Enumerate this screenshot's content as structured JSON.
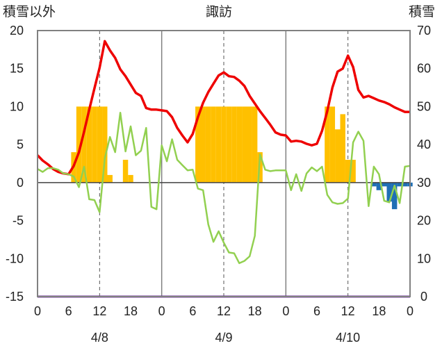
{
  "headings": {
    "left_axis_title": "積雪以外",
    "station": "諏訪",
    "right_axis_title": "積雪"
  },
  "colors": {
    "temperature": "#ee0000",
    "precipitation": "#ffc000",
    "wind": "#92d050",
    "snow_depth": "#1f6fb5",
    "snow_line": "#7030a0",
    "frame": "#808080",
    "grid": "#555555"
  },
  "chart_data": {
    "type": "bar+line",
    "title": "諏訪",
    "left_axis": {
      "label": "積雪以外",
      "ylim": [
        -15,
        20
      ],
      "ticks": [
        -15,
        -10,
        -5,
        0,
        5,
        10,
        15,
        20
      ]
    },
    "right_axis": {
      "label": "積雪",
      "ylim": [
        0,
        70
      ],
      "ticks": [
        0,
        10,
        20,
        30,
        40,
        50,
        60,
        70
      ]
    },
    "x": {
      "unit": "hour",
      "range": [
        0,
        72
      ],
      "tick_labels": [
        "0",
        "6",
        "12",
        "18",
        "0",
        "6",
        "12",
        "18",
        "0",
        "6",
        "12",
        "18",
        "0"
      ],
      "tick_hours": [
        0,
        6,
        12,
        18,
        24,
        30,
        36,
        42,
        48,
        54,
        60,
        66,
        72
      ],
      "day_labels": [
        "4/8",
        "4/9",
        "4/10"
      ]
    },
    "grid": {
      "solid_vertical_at_hours": [
        24,
        48
      ],
      "dashed_vertical_at_hours": [
        12,
        36,
        60
      ],
      "zero_line": true
    },
    "series": [
      {
        "kind": "bar",
        "axis": "left",
        "color_key": "precipitation",
        "hours": [
          7,
          8,
          9,
          10,
          11,
          12,
          13,
          14,
          17,
          18,
          31,
          32,
          33,
          34,
          35,
          36,
          37,
          38,
          39,
          40,
          41,
          42,
          43,
          56,
          57,
          58,
          59,
          60,
          61
        ],
        "values": [
          4,
          10,
          10,
          10,
          10,
          10,
          10,
          1,
          3,
          1,
          10,
          10,
          10,
          10,
          10,
          10,
          10,
          10,
          10,
          10,
          10,
          10,
          4,
          10,
          10,
          7,
          9,
          3,
          3
        ]
      },
      {
        "kind": "bar",
        "axis": "left",
        "color_key": "snow_depth",
        "hours": [
          65,
          66,
          67,
          68,
          69,
          70,
          71,
          72
        ],
        "values": [
          -0.5,
          -1,
          -0.5,
          -2.5,
          -3.5,
          -0.5,
          -0.5,
          -0.5
        ]
      },
      {
        "kind": "line",
        "axis": "left",
        "color_key": "temperature",
        "hours": [
          0,
          1,
          2,
          3,
          4,
          5,
          6,
          7,
          8,
          9,
          10,
          11,
          12,
          13,
          14,
          15,
          16,
          17,
          18,
          19,
          20,
          21,
          22,
          23,
          24,
          25,
          26,
          27,
          28,
          29,
          30,
          31,
          32,
          33,
          34,
          35,
          36,
          37,
          38,
          39,
          40,
          41,
          42,
          43,
          44,
          45,
          46,
          47,
          48,
          49,
          50,
          51,
          52,
          53,
          54,
          55,
          56,
          57,
          58,
          59,
          60,
          61,
          62,
          63,
          64,
          65,
          66,
          67,
          68,
          69,
          70,
          71,
          72
        ],
        "values": [
          3.6,
          2.9,
          2.4,
          1.8,
          1.4,
          1.2,
          1.1,
          2.2,
          4.0,
          6.7,
          9.6,
          12.4,
          15.1,
          18.6,
          17.4,
          16.4,
          14.9,
          14.0,
          12.9,
          11.8,
          11.4,
          9.8,
          9.6,
          9.6,
          9.5,
          9.4,
          8.6,
          7.2,
          6.2,
          5.3,
          6.4,
          8.6,
          10.5,
          11.9,
          13.0,
          14.1,
          14.5,
          14.0,
          13.9,
          13.4,
          12.7,
          11.4,
          10.4,
          9.4,
          8.5,
          7.6,
          6.6,
          6.3,
          6.2,
          5.4,
          5.5,
          5.4,
          5.1,
          4.9,
          5.1,
          6.8,
          9.4,
          12.5,
          14.6,
          15.0,
          16.7,
          15.2,
          12.2,
          11.2,
          11.4,
          11.1,
          10.8,
          10.6,
          10.3,
          9.9,
          9.6,
          9.3,
          9.3
        ]
      },
      {
        "kind": "line",
        "axis": "left",
        "color_key": "wind",
        "hours": [
          0,
          1,
          2,
          3,
          4,
          5,
          6,
          7,
          8,
          9,
          10,
          11,
          12,
          13,
          14,
          15,
          16,
          17,
          18,
          19,
          20,
          21,
          22,
          23,
          24,
          25,
          26,
          27,
          28,
          29,
          30,
          31,
          32,
          33,
          34,
          35,
          36,
          37,
          38,
          39,
          40,
          41,
          42,
          43,
          44,
          45,
          46,
          47,
          48,
          49,
          50,
          51,
          52,
          53,
          54,
          55,
          56,
          57,
          58,
          59,
          60,
          61,
          62,
          63,
          64,
          65,
          66,
          67,
          68,
          69,
          70,
          71,
          72
        ],
        "values": [
          1.8,
          1.4,
          1.9,
          1.9,
          1.7,
          1.2,
          1.1,
          0.8,
          -0.6,
          2.1,
          -2.2,
          -2.3,
          -3.9,
          3.2,
          6.0,
          4.0,
          9.2,
          4.1,
          7.4,
          3.6,
          4.2,
          7.2,
          -3.2,
          -3.5,
          4.9,
          2.8,
          5.7,
          3.0,
          2.3,
          1.6,
          1.7,
          -0.8,
          -1.0,
          -5.5,
          -7.8,
          -6.4,
          -7.9,
          -9.2,
          -9.3,
          -10.6,
          -10.3,
          -9.7,
          -7.0,
          3.7,
          1.7,
          1.5,
          1.6,
          1.6,
          1.6,
          -1.0,
          1.1,
          -1.1,
          1.2,
          2.0,
          1.5,
          2.1,
          -1.6,
          -2.6,
          -2.8,
          -2.7,
          -2.1,
          5.3,
          6.7,
          5.5,
          -3.1,
          2.1,
          1.1,
          -2.4,
          -2.6,
          -0.4,
          -2.7,
          2.1,
          2.2
        ]
      },
      {
        "kind": "line",
        "axis": "right",
        "color_key": "snow_line",
        "hours": [
          0,
          72
        ],
        "values": [
          0,
          0
        ]
      }
    ]
  }
}
